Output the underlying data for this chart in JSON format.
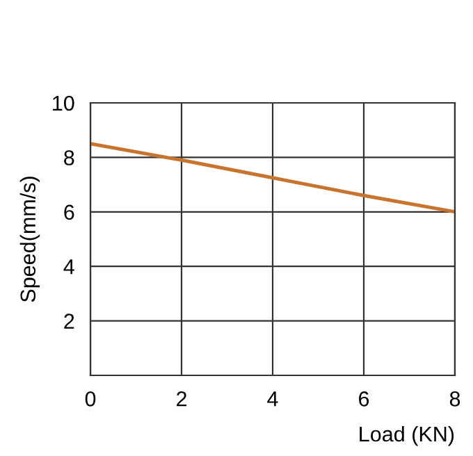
{
  "chart_data": {
    "type": "line",
    "xlabel": "Load (KN)",
    "ylabel": "Speed(mm/s)",
    "x": [
      0,
      2,
      4,
      6,
      8
    ],
    "series": [
      {
        "color": "#c8742f",
        "values": [
          8.5,
          7.9,
          7.25,
          6.6,
          6.0
        ]
      }
    ],
    "xlim": [
      0,
      8
    ],
    "ylim": [
      0,
      10
    ],
    "xticks": [
      0,
      2,
      4,
      6,
      8
    ],
    "yticks": [
      {
        "value": 0,
        "label": null
      },
      2,
      4,
      6,
      8,
      10
    ],
    "grid": true,
    "marker": "none",
    "line_style": "solid"
  }
}
